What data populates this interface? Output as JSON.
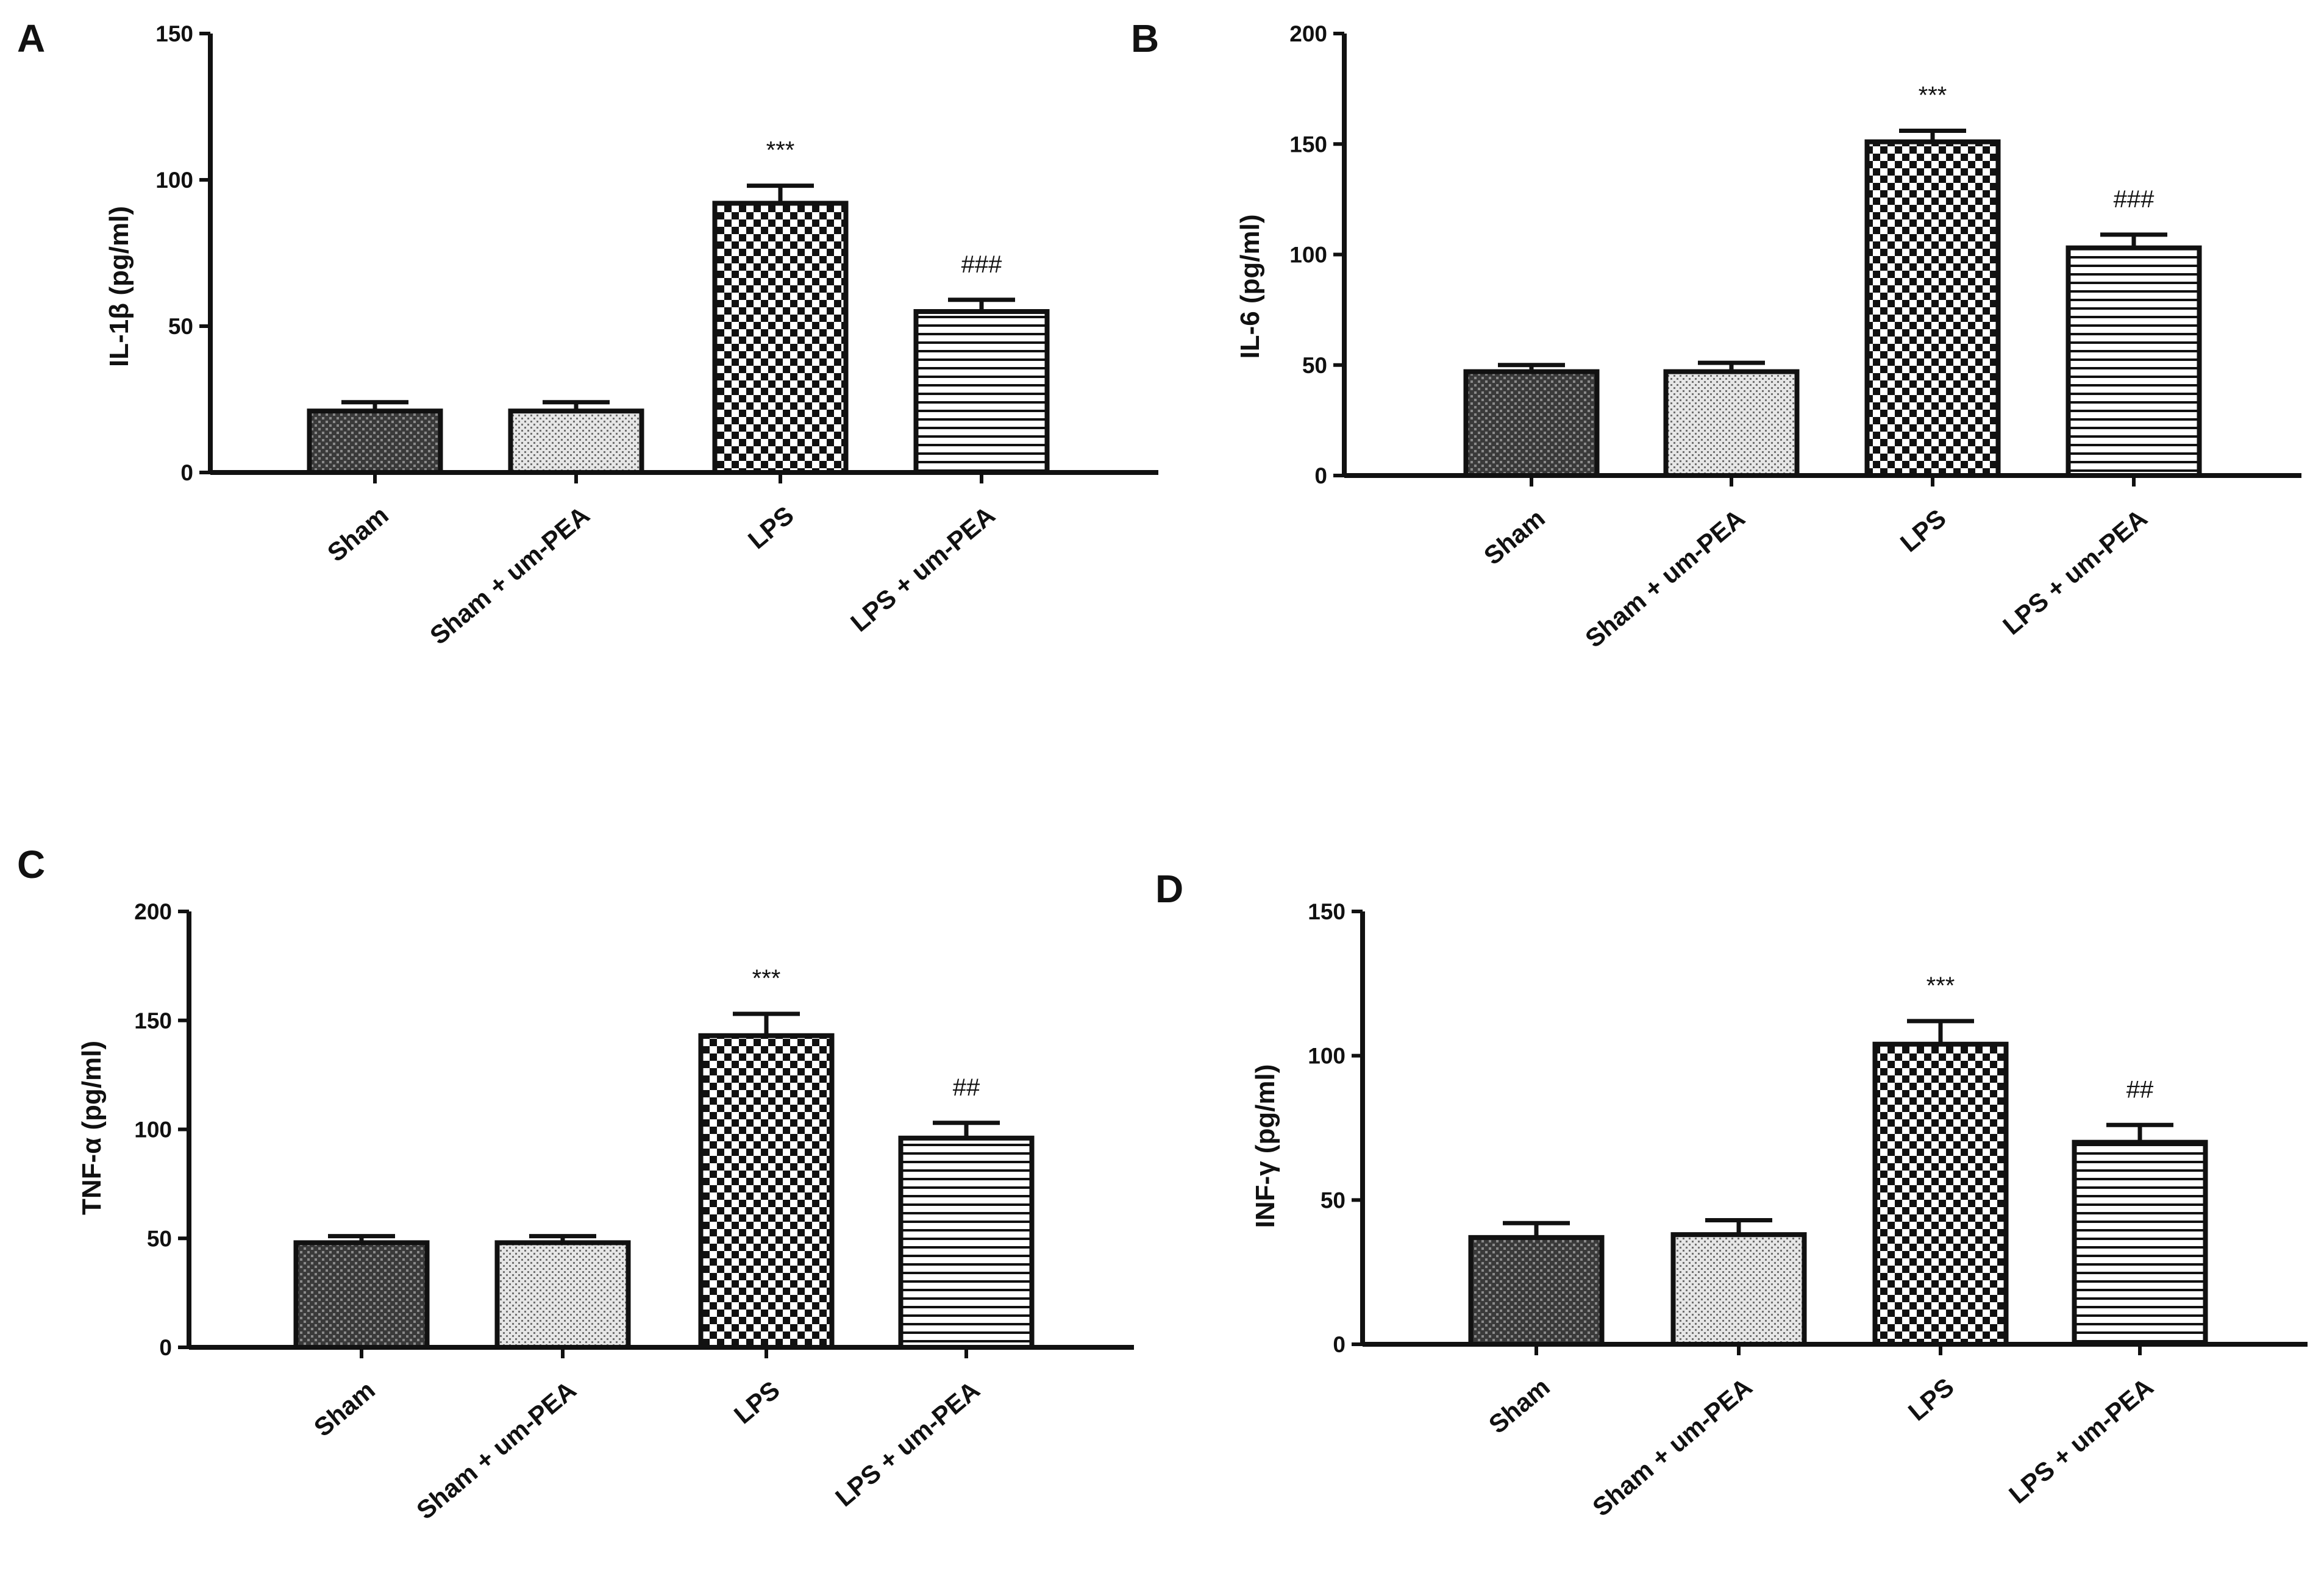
{
  "chart_data": [
    {
      "type": "bar",
      "panel": "A",
      "ylabel": "IL-1β (pg/ml)",
      "ylim": [
        0,
        150
      ],
      "yticks": [
        "0",
        "50",
        "100",
        "150"
      ],
      "categories": [
        "Sham",
        "Sham + um-PEA",
        "LPS",
        "LPS + um-PEA"
      ],
      "values": [
        21,
        21,
        92,
        55
      ],
      "errors": [
        3,
        3,
        6,
        4
      ],
      "significance": [
        "",
        "",
        "***",
        "###"
      ]
    },
    {
      "type": "bar",
      "panel": "B",
      "ylabel": "IL-6 (pg/ml)",
      "ylim": [
        0,
        200
      ],
      "yticks": [
        "0",
        "50",
        "100",
        "150",
        "200"
      ],
      "categories": [
        "Sham",
        "Sham + um-PEA",
        "LPS",
        "LPS + um-PEA"
      ],
      "values": [
        47,
        47,
        151,
        103
      ],
      "errors": [
        3,
        4,
        5,
        6
      ],
      "significance": [
        "",
        "",
        "***",
        "###"
      ]
    },
    {
      "type": "bar",
      "panel": "C",
      "ylabel": "TNF-α (pg/ml)",
      "ylim": [
        0,
        200
      ],
      "yticks": [
        "0",
        "50",
        "100",
        "150",
        "200"
      ],
      "categories": [
        "Sham",
        "Sham + um-PEA",
        "LPS",
        "LPS + um-PEA"
      ],
      "values": [
        48,
        48,
        143,
        96
      ],
      "errors": [
        3,
        3,
        10,
        7
      ],
      "significance": [
        "",
        "",
        "***",
        "##"
      ]
    },
    {
      "type": "bar",
      "panel": "D",
      "ylabel": "INF-γ (pg/ml)",
      "ylim": [
        0,
        150
      ],
      "yticks": [
        "0",
        "50",
        "100",
        "150"
      ],
      "categories": [
        "Sham",
        "Sham + um-PEA",
        "LPS",
        "LPS + um-PEA"
      ],
      "values": [
        37,
        38,
        104,
        70
      ],
      "errors": [
        5,
        5,
        8,
        6
      ],
      "significance": [
        "",
        "",
        "***",
        "##"
      ]
    }
  ],
  "colors": {
    "ink": "#111111",
    "background": "#ffffff",
    "sham_fill": "#3a3a3a",
    "sham_pea_fill": "#bdbdbd"
  }
}
